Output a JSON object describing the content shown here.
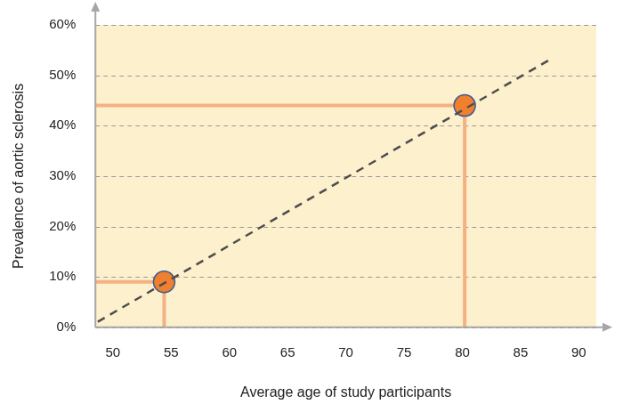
{
  "chart_data": {
    "type": "scatter",
    "x_label": "Average age of study participants",
    "y_label": "Prevalence of aortic sclerosis",
    "series": [
      {
        "type": "line",
        "line_style": "dashed",
        "color": "#4d4d4d",
        "x": [
          48.7,
          87.8
        ],
        "values": [
          1.1,
          53.5
        ]
      },
      {
        "type": "scatter",
        "marker": "circle",
        "color": "#f07f2e",
        "x": [
          54.4,
          80.2
        ],
        "values": [
          9,
          44
        ]
      }
    ],
    "xlim": [
      48.5,
      91.5
    ],
    "xticks": [
      50,
      55,
      60,
      65,
      70,
      75,
      80,
      85,
      90
    ],
    "ylim": [
      0,
      60
    ],
    "yticks": [
      {
        "value": 0,
        "label": "0%"
      },
      {
        "value": 10,
        "label": "10%"
      },
      {
        "value": 20,
        "label": "20%"
      },
      {
        "value": 30,
        "label": "30%"
      },
      {
        "value": 40,
        "label": "40%"
      },
      {
        "value": 50,
        "label": "50%"
      },
      {
        "value": 60,
        "label": "60%"
      }
    ],
    "grid": true
  }
}
